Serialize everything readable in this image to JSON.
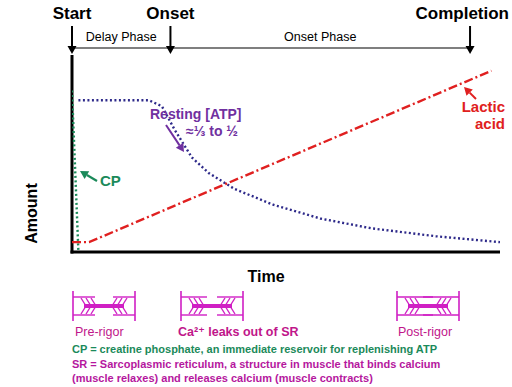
{
  "chart_data": {
    "type": "line",
    "xlabel": "Time",
    "ylabel": "Amount",
    "xlim": [
      0,
      100
    ],
    "ylim": [
      0,
      100
    ],
    "tick_labels": false,
    "grid": false,
    "events": [
      {
        "label": "Start",
        "x": 0
      },
      {
        "label": "Onset",
        "x": 23
      },
      {
        "label": "Completion",
        "x": 93
      }
    ],
    "phases": [
      "Delay Phase",
      "Onset Phase"
    ],
    "series": [
      {
        "name": "CP",
        "color": "#1b8a5a",
        "line_style": "dotted",
        "x": [
          0,
          1.5
        ],
        "values": [
          82,
          0
        ]
      },
      {
        "name": "Resting [ATP]",
        "color": "#2e2a8a",
        "line_style": "dotted",
        "x": [
          1.5,
          18,
          21,
          24,
          28,
          32,
          38,
          47,
          58,
          70,
          85,
          100
        ],
        "values": [
          77,
          77,
          74,
          62,
          48,
          40,
          32,
          24,
          17,
          12,
          8,
          5
        ]
      },
      {
        "name": "Lactic acid",
        "color": "#e02020",
        "line_style": "dashdot",
        "x": [
          0,
          4,
          98
        ],
        "values": [
          5,
          5,
          92
        ]
      }
    ],
    "annotations": [
      "≈⅓ to ½"
    ],
    "stages": [
      "Pre-rigor",
      "Ca²⁺ leaks out of SR",
      "Post-rigor"
    ],
    "notes": [
      "CP = creatine phosphate, an immediate reservoir for replenishing ATP",
      "SR = Sarcoplasmic reticulum, a structure in muscle that binds calcium",
      "(muscle relaxes) and releases calcium (muscle contracts)"
    ]
  }
}
